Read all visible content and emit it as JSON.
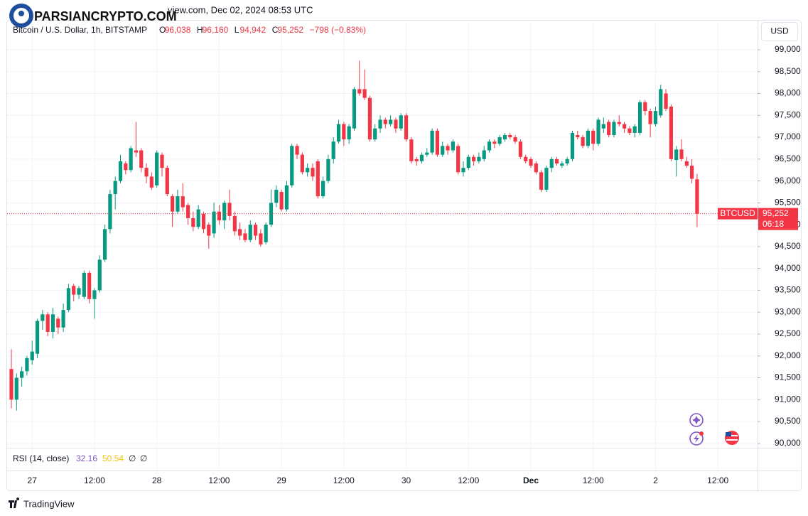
{
  "chart_data": {
    "type": "candlestick",
    "watermark": "PARSIANCRYPTO.COM",
    "snapshot_line": "view.com, Dec 02, 2024 08:53 UTC",
    "header": {
      "symbol_line": "Bitcoin / U.S. Dollar, 1h, BITSTAMP",
      "ohlc": [
        {
          "key": "O",
          "value": "96,038"
        },
        {
          "key": "H",
          "value": "96,160"
        },
        {
          "key": "L",
          "value": "94,942"
        },
        {
          "key": "C",
          "value": "95,252"
        }
      ],
      "change": "−798 (−0.83%)"
    },
    "currency_button": "USD",
    "symbol_tag": "BTCUSD",
    "close_label": "95,252",
    "countdown": "06:18",
    "up_color": "#089981",
    "down_color": "#f23645",
    "ylim": [
      89900,
      99650
    ],
    "yticks": [
      {
        "value": 90000,
        "label": "90,000"
      },
      {
        "value": 90500,
        "label": "90,500"
      },
      {
        "value": 91000,
        "label": "91,000"
      },
      {
        "value": 91500,
        "label": "91,500"
      },
      {
        "value": 92000,
        "label": "92,000"
      },
      {
        "value": 92500,
        "label": "92,500"
      },
      {
        "value": 93000,
        "label": "93,000"
      },
      {
        "value": 93500,
        "label": "93,500"
      },
      {
        "value": 94000,
        "label": "94,000"
      },
      {
        "value": 94500,
        "label": "94,500"
      },
      {
        "value": 95000,
        "label": "95,000"
      },
      {
        "value": 95500,
        "label": "95,500"
      },
      {
        "value": 96000,
        "label": "96,000"
      },
      {
        "value": 96500,
        "label": "96,500"
      },
      {
        "value": 97000,
        "label": "97,000"
      },
      {
        "value": 97500,
        "label": "97,500"
      },
      {
        "value": 98000,
        "label": "98,000"
      },
      {
        "value": 98500,
        "label": "98,500"
      },
      {
        "value": 99000,
        "label": "99,000"
      }
    ],
    "grid": true,
    "time_labels": [
      "27",
      "12:00",
      "28",
      "12:00",
      "29",
      "12:00",
      "30",
      "12:00",
      "Dec",
      "12:00",
      "2",
      "12:00"
    ],
    "open": [
      91700,
      91000,
      91500,
      91650,
      91900,
      92050,
      92800,
      92950,
      92550,
      92850,
      92650,
      93050,
      93600,
      93400,
      93350,
      93900,
      93300,
      93500,
      94200,
      94900,
      95700,
      96000,
      96400,
      96250,
      96700,
      96700,
      96300,
      96100,
      95900,
      96600,
      96300,
      95650,
      95300,
      95650,
      95450,
      95150,
      94950,
      95250,
      95000,
      94800,
      95300,
      95100,
      95500,
      95200,
      94900,
      94800,
      94650,
      95000,
      94800,
      94600,
      95000,
      95500,
      95750,
      95350,
      95900,
      96800,
      96600,
      96200,
      96300,
      96450,
      95650,
      96000,
      96500,
      96900,
      97300,
      96950,
      97200,
      98100,
      98100,
      97900,
      96950,
      97200,
      97400,
      97300,
      97400,
      97200,
      97500,
      96950,
      96500,
      96450,
      96600,
      96650,
      97150,
      96600,
      96800,
      96700,
      96800,
      96200,
      96300,
      96550,
      96450,
      96500,
      96700,
      96900,
      96850,
      96950,
      97050,
      97000,
      96900,
      96550,
      96500,
      96400,
      96200,
      95800,
      96300,
      96500,
      96350,
      96400,
      96500,
      97050,
      97000,
      96800,
      97150,
      96850,
      97200,
      97350,
      97050,
      97350,
      97300,
      97200,
      97100,
      97100,
      97800,
      97600,
      97300,
      97500,
      98000,
      97700,
      96480,
      96720,
      96450,
      96350,
      96038
    ],
    "high": [
      92150,
      91600,
      91750,
      92000,
      92350,
      92850,
      93050,
      93000,
      93100,
      92900,
      93200,
      93650,
      93650,
      93600,
      93950,
      93950,
      93550,
      94300,
      95000,
      95800,
      96100,
      96600,
      96450,
      96800,
      97350,
      96750,
      96400,
      96200,
      96700,
      96650,
      96350,
      95700,
      95800,
      95950,
      95500,
      95300,
      95450,
      95300,
      95050,
      95500,
      95450,
      95550,
      95800,
      95300,
      95050,
      94900,
      95100,
      95050,
      94900,
      95050,
      95800,
      95900,
      95800,
      96000,
      96850,
      96850,
      96650,
      96400,
      96400,
      96500,
      96100,
      96600,
      97000,
      97400,
      97350,
      97300,
      98150,
      98750,
      98550,
      97950,
      97300,
      97500,
      97450,
      97500,
      97450,
      97550,
      97550,
      97000,
      96550,
      96650,
      96750,
      97200,
      97200,
      96900,
      96850,
      96950,
      96850,
      96450,
      96600,
      96600,
      96650,
      96800,
      96950,
      96950,
      97050,
      97100,
      97100,
      97050,
      96950,
      96600,
      96550,
      96450,
      96250,
      96350,
      96550,
      96550,
      96450,
      96550,
      97150,
      97150,
      97050,
      97200,
      97200,
      97450,
      97450,
      97400,
      97400,
      97500,
      97350,
      97250,
      97300,
      97850,
      97850,
      97650,
      97700,
      98200,
      98100,
      97750,
      96800,
      96950,
      96550,
      96500,
      96160
    ],
    "low": [
      90800,
      90750,
      91300,
      91550,
      91800,
      91950,
      92600,
      92450,
      92400,
      92500,
      92550,
      93000,
      93250,
      93300,
      93300,
      93200,
      92850,
      93450,
      94150,
      94800,
      95350,
      95950,
      96150,
      96200,
      96550,
      96200,
      95950,
      95800,
      95850,
      96100,
      95650,
      94950,
      95250,
      95300,
      95000,
      94850,
      94900,
      94800,
      94450,
      94700,
      95000,
      94900,
      95100,
      94750,
      94650,
      94600,
      94600,
      94650,
      94500,
      94550,
      94950,
      95400,
      95300,
      95300,
      95850,
      96500,
      96150,
      96100,
      96000,
      95600,
      95600,
      95950,
      96400,
      96850,
      96800,
      96850,
      97150,
      97950,
      97850,
      96900,
      96900,
      97100,
      97200,
      97250,
      97100,
      97150,
      96900,
      96400,
      96350,
      96400,
      96550,
      96600,
      96550,
      96550,
      96600,
      96650,
      96150,
      96100,
      96250,
      96350,
      96400,
      96450,
      96650,
      96750,
      96800,
      96900,
      96950,
      96850,
      96500,
      96400,
      96300,
      96150,
      95750,
      95750,
      96200,
      96350,
      96300,
      96350,
      96450,
      96950,
      96750,
      96750,
      96700,
      96800,
      97100,
      97000,
      97000,
      97250,
      97100,
      97050,
      97000,
      97050,
      97500,
      97000,
      97250,
      97450,
      97600,
      96450,
      96100,
      96450,
      96300,
      95950,
      94942
    ],
    "close": [
      91000,
      91500,
      91650,
      91950,
      92100,
      92800,
      92950,
      92550,
      92950,
      92650,
      93050,
      93550,
      93400,
      93550,
      93900,
      93300,
      93500,
      94200,
      94900,
      95700,
      96000,
      96450,
      96250,
      96750,
      96650,
      96300,
      96100,
      95850,
      96650,
      96300,
      95700,
      95300,
      95650,
      95400,
      95150,
      94950,
      95350,
      94900,
      94750,
      95300,
      95100,
      95500,
      95200,
      94850,
      94750,
      94650,
      95000,
      94750,
      94550,
      95000,
      95500,
      95800,
      95350,
      95900,
      96800,
      96600,
      96200,
      96300,
      96100,
      95650,
      96000,
      96500,
      96900,
      97300,
      96950,
      97250,
      98100,
      98000,
      97900,
      96950,
      97200,
      97400,
      97300,
      97400,
      97200,
      97500,
      96950,
      96450,
      96450,
      96600,
      96650,
      97150,
      96600,
      96800,
      96700,
      96900,
      96200,
      96300,
      96550,
      96450,
      96550,
      96700,
      96900,
      96850,
      97000,
      97050,
      97000,
      96900,
      96550,
      96450,
      96350,
      96200,
      95800,
      96300,
      96500,
      96400,
      96400,
      96500,
      97100,
      97000,
      96800,
      97150,
      96850,
      97400,
      97300,
      97050,
      97350,
      97300,
      97200,
      97100,
      97250,
      97800,
      97600,
      97300,
      97600,
      98100,
      97650,
      96500,
      96720,
      96500,
      96350,
      96050,
      95252
    ],
    "rsi": {
      "label": "RSI (14, close)",
      "values": [
        32.16,
        50.54
      ],
      "colors": [
        "#7e57c2",
        "#f5c400"
      ],
      "extras": [
        "∅",
        "∅"
      ]
    },
    "footer": "TradingView"
  }
}
